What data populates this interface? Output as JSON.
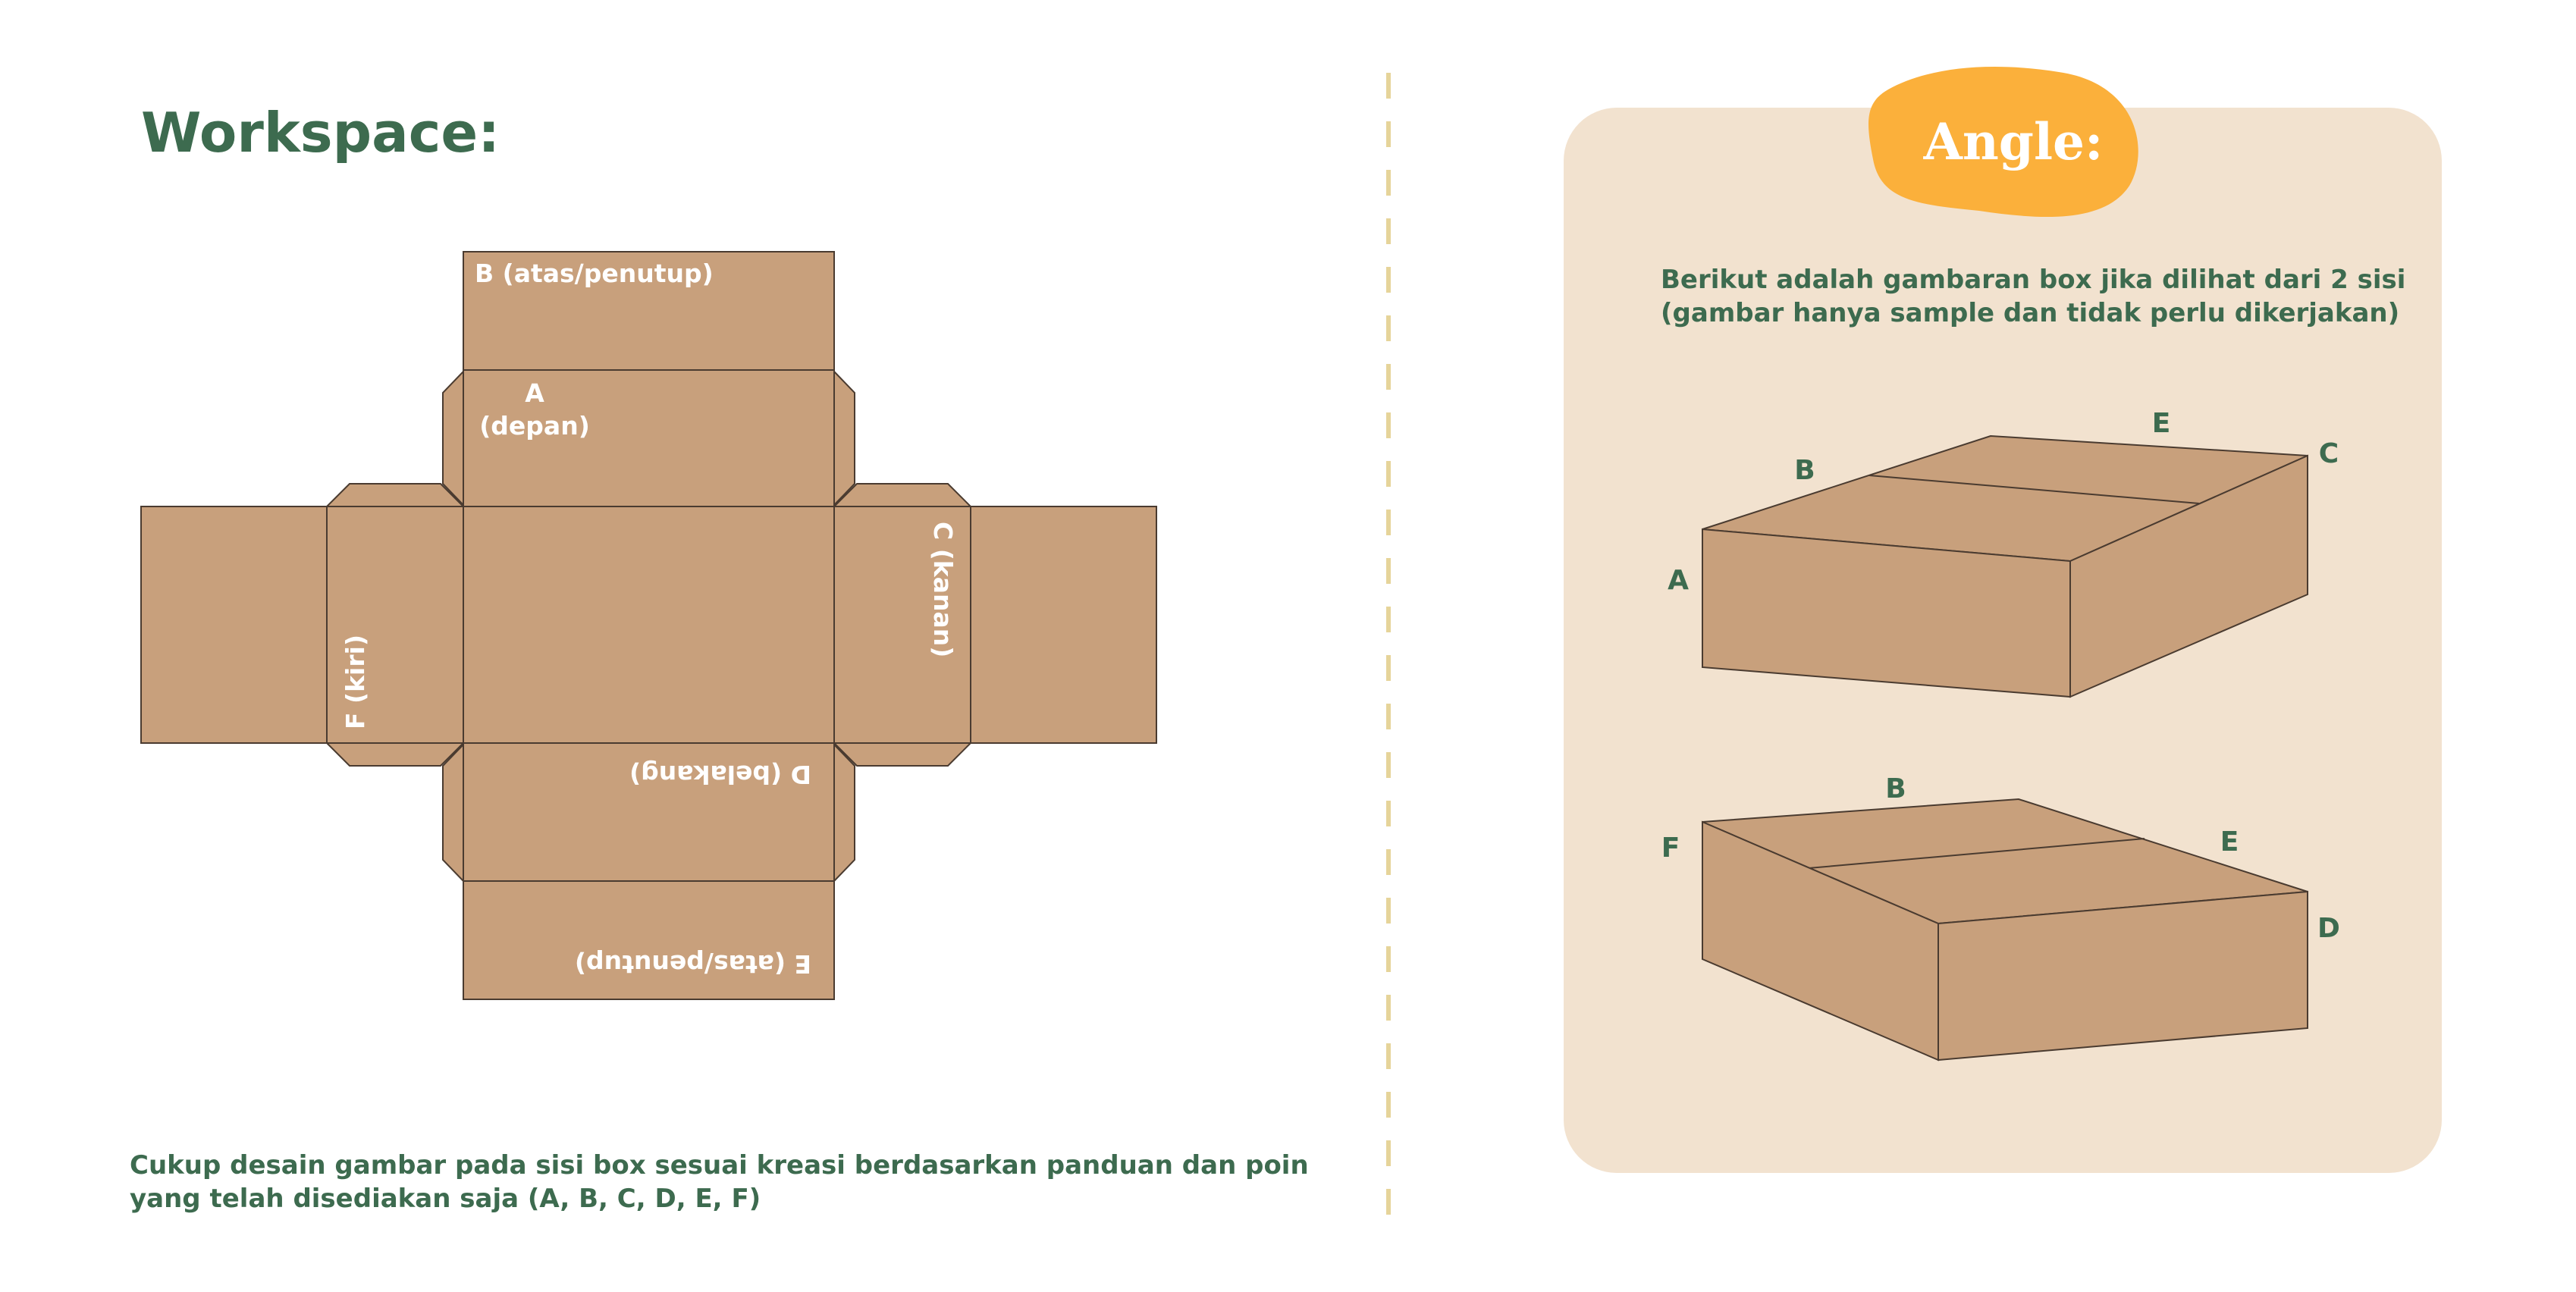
{
  "workspace": {
    "title": "Workspace:",
    "faces": {
      "top_flap": "B (atas/penutup)",
      "front_line1": "A",
      "front_line2": "(depan)",
      "right": "C (kanan)",
      "left": "F (kiri)",
      "back": "D (belakang)",
      "bottom_flap": "E (atas/penutup)"
    },
    "instruction_line1": "Cukup desain gambar pada sisi box sesuai kreasi berdasarkan panduan dan poin",
    "instruction_line2": "yang telah disediakan saja (A, B, C, D, E, F)"
  },
  "angle": {
    "badge": "Angle:",
    "desc_line1": "Berikut adalah gambaran box jika dilihat dari 2 sisi",
    "desc_line2": "(gambar hanya sample dan tidak perlu dikerjakan)",
    "box1_labels": {
      "a": "A",
      "b": "B",
      "c": "C",
      "e": "E"
    },
    "box2_labels": {
      "b": "B",
      "d": "D",
      "e": "E",
      "f": "F"
    }
  },
  "colors": {
    "green": "#3d6b4f",
    "cardboard": "#c8a07c",
    "panel_bg": "#f2e2cf",
    "badge": "#fbb03b",
    "divider": "#e6d49a"
  }
}
